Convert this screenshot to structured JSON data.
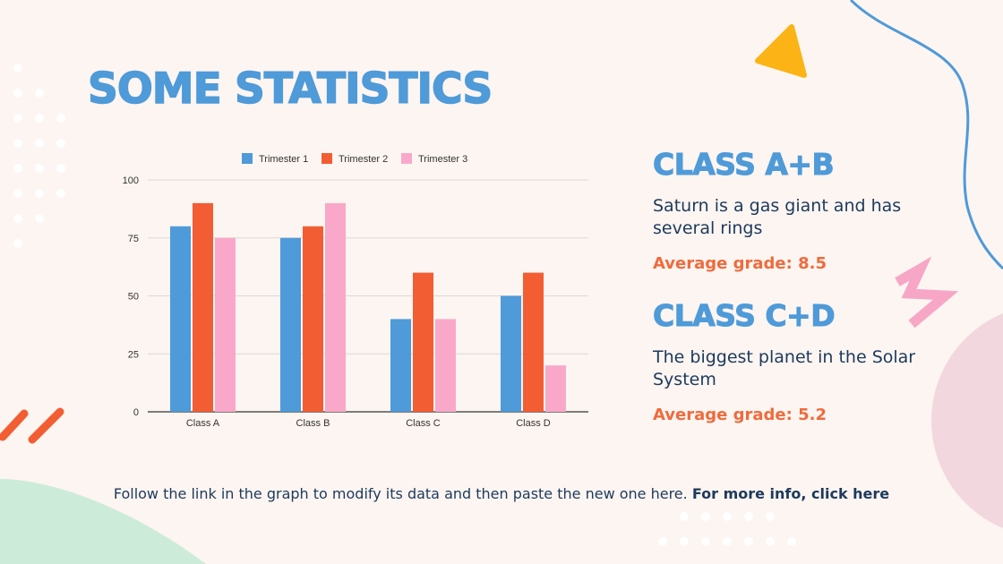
{
  "slide": {
    "title": "SOME STATISTICS",
    "footer_text": "Follow the link in the graph to modify its data and then paste the new one here.",
    "footer_link": "For more info, click here"
  },
  "sections": [
    {
      "heading": "CLASS A+B",
      "description": "Saturn is a gas giant and has several rings",
      "grade": "Average grade: 8.5"
    },
    {
      "heading": "CLASS C+D",
      "description": "The biggest planet in the Solar System",
      "grade": "Average grade: 5.2"
    }
  ],
  "colors": {
    "accent_blue": "#4f9ad8",
    "accent_orange": "#f35d33",
    "accent_pink": "#f9a8c9",
    "text_dark": "#1d3a5c"
  },
  "chart_data": {
    "type": "bar",
    "categories": [
      "Class A",
      "Class B",
      "Class C",
      "Class D"
    ],
    "series": [
      {
        "name": "Trimester 1",
        "color": "#4f9ad8",
        "values": [
          80,
          75,
          40,
          50
        ]
      },
      {
        "name": "Trimester 2",
        "color": "#f35d33",
        "values": [
          90,
          80,
          60,
          60
        ]
      },
      {
        "name": "Trimester 3",
        "color": "#f9a8c9",
        "values": [
          75,
          90,
          40,
          20
        ]
      }
    ],
    "yticks": [
      0,
      25,
      50,
      75,
      100
    ],
    "ylim": [
      0,
      100
    ],
    "grid": true,
    "legend": "top"
  }
}
